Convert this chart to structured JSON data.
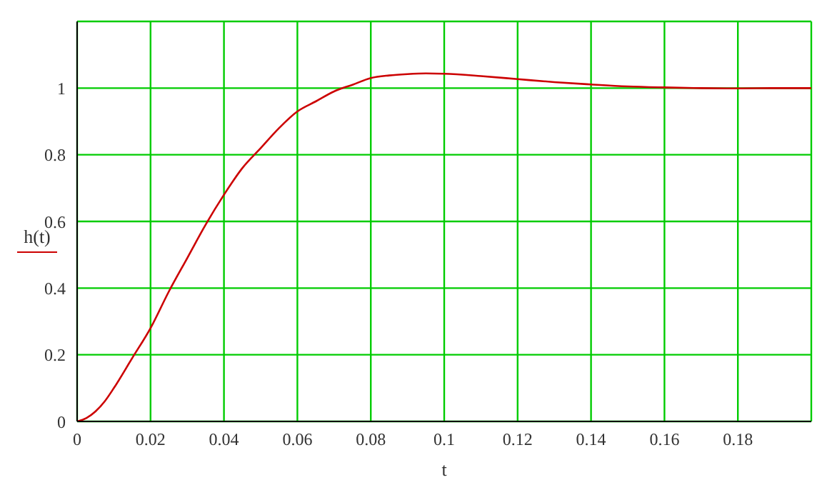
{
  "chart_data": {
    "type": "line",
    "xlabel": "t",
    "legend": "left",
    "grid": true,
    "marker": "none",
    "line_style": "solid",
    "xlim": [
      0,
      0.2
    ],
    "xticks": [
      0,
      0.02,
      0.04,
      0.06,
      0.08,
      0.1,
      0.12,
      0.14,
      0.16,
      0.18
    ],
    "ylim": [
      0,
      1.2
    ],
    "yticks": [
      0,
      0.2,
      0.4,
      0.6,
      0.8,
      1
    ],
    "x": [
      0,
      0.0025,
      0.005,
      0.0075,
      0.01,
      0.015,
      0.02,
      0.025,
      0.03,
      0.035,
      0.04,
      0.045,
      0.05,
      0.055,
      0.06,
      0.065,
      0.07,
      0.075,
      0.08,
      0.085,
      0.09,
      0.095,
      0.1,
      0.11,
      0.12,
      0.13,
      0.14,
      0.15,
      0.16,
      0.17,
      0.18,
      0.19,
      0.2
    ],
    "series": [
      {
        "name": "h(t)",
        "color": "#cc0000",
        "values": [
          0,
          0.01,
          0.03,
          0.06,
          0.1,
          0.19,
          0.28,
          0.39,
          0.49,
          0.59,
          0.68,
          0.76,
          0.82,
          0.88,
          0.93,
          0.96,
          0.99,
          1.01,
          1.03,
          1.038,
          1.042,
          1.044,
          1.043,
          1.036,
          1.027,
          1.018,
          1.011,
          1.005,
          1.002,
          1.0,
          0.999,
          1.0,
          1.0
        ]
      }
    ]
  }
}
